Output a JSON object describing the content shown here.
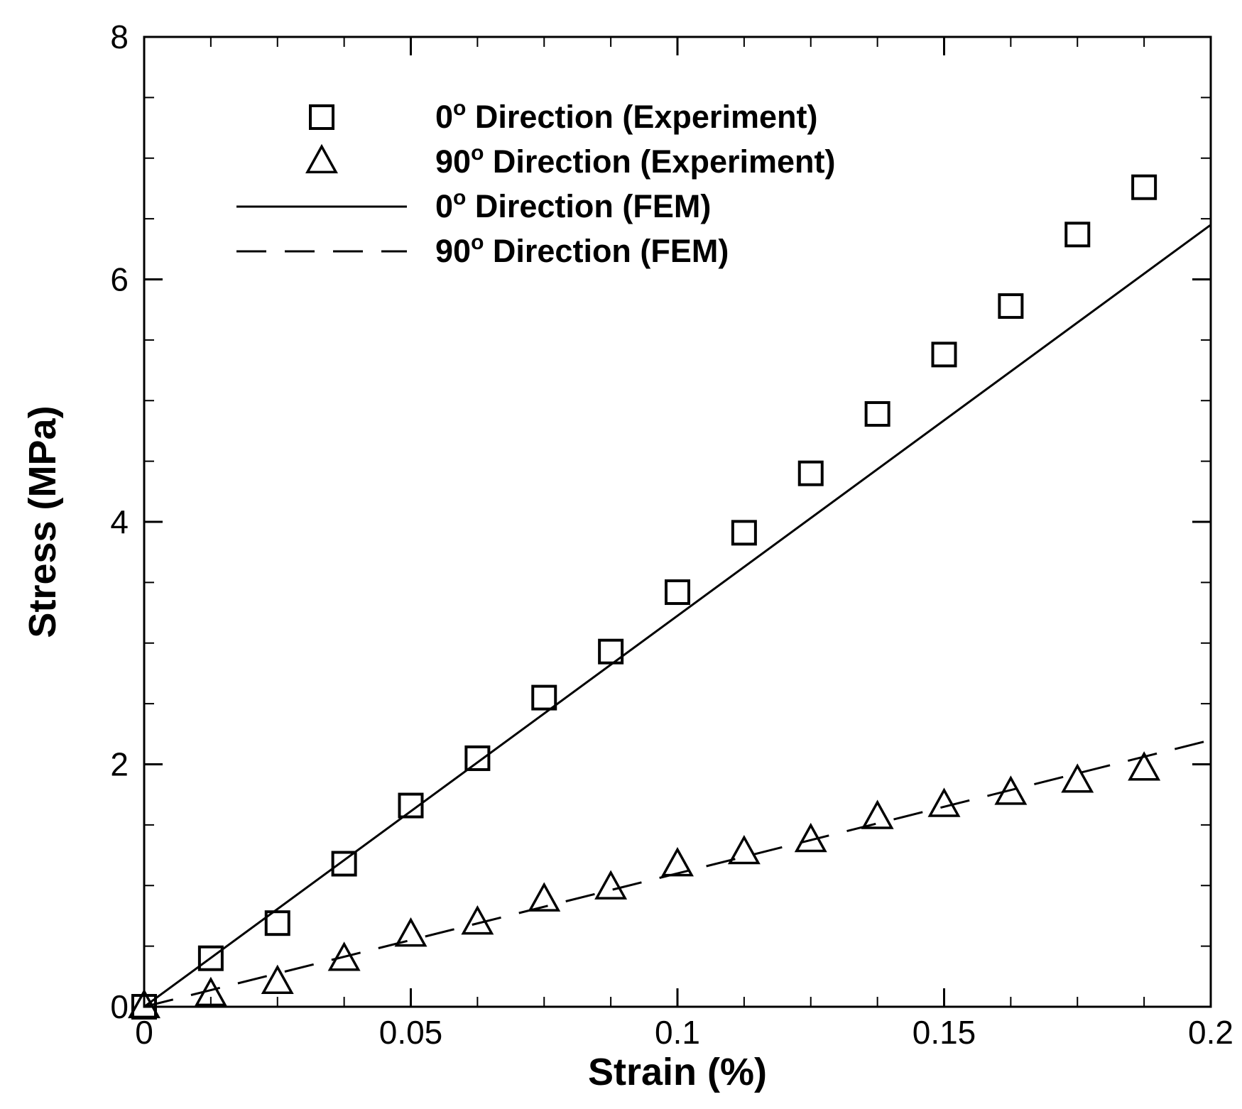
{
  "chart_data": {
    "type": "scatter",
    "title": "",
    "xlabel": "Strain (%)",
    "ylabel": "Stress (MPa)",
    "xlim": [
      0,
      0.2
    ],
    "ylim": [
      0,
      8
    ],
    "grid": false,
    "legend_position": "top-left",
    "x_ticks": [
      {
        "value": 0,
        "label": "0"
      },
      {
        "value": 0.05,
        "label": "0.05"
      },
      {
        "value": 0.1,
        "label": "0.1"
      },
      {
        "value": 0.15,
        "label": "0.15"
      },
      {
        "value": 0.2,
        "label": "0.2"
      }
    ],
    "y_ticks": [
      {
        "value": 0,
        "label": "0"
      },
      {
        "value": 2,
        "label": "2"
      },
      {
        "value": 4,
        "label": "4"
      },
      {
        "value": 6,
        "label": "6"
      },
      {
        "value": 8,
        "label": "8"
      }
    ],
    "series": [
      {
        "name": "0° Direction (Experiment)",
        "legend_main": "0",
        "legend_sup": "o",
        "legend_rest": " Direction (Experiment)",
        "style": "square-marker",
        "x": [
          0,
          0.0125,
          0.025,
          0.0375,
          0.05,
          0.0625,
          0.075,
          0.0875,
          0.1,
          0.1125,
          0.125,
          0.1375,
          0.15,
          0.1625,
          0.175,
          0.1875
        ],
        "y": [
          0,
          0.4,
          0.69,
          1.18,
          1.66,
          2.05,
          2.55,
          2.93,
          3.42,
          3.91,
          4.4,
          4.89,
          5.38,
          5.78,
          6.37,
          6.76
        ]
      },
      {
        "name": "90° Direction (Experiment)",
        "legend_main": "90",
        "legend_sup": "o",
        "legend_rest": " Direction (Experiment)",
        "style": "triangle-marker",
        "x": [
          0,
          0.0125,
          0.025,
          0.0375,
          0.05,
          0.0625,
          0.075,
          0.0875,
          0.1,
          0.1125,
          0.125,
          0.1375,
          0.15,
          0.1625,
          0.175,
          0.1875
        ],
        "y": [
          0,
          0.1,
          0.2,
          0.39,
          0.59,
          0.69,
          0.88,
          0.98,
          1.17,
          1.27,
          1.37,
          1.56,
          1.66,
          1.76,
          1.86,
          1.96
        ]
      },
      {
        "name": "0° Direction (FEM)",
        "legend_main": "0",
        "legend_sup": "o",
        "legend_rest": " Direction (FEM)",
        "style": "solid-line",
        "x": [
          0,
          0.2
        ],
        "y": [
          0,
          6.45
        ]
      },
      {
        "name": "90° Direction (FEM)",
        "legend_main": "90",
        "legend_sup": "o",
        "legend_rest": " Direction (FEM)",
        "style": "dashed-line",
        "x": [
          0,
          0.2
        ],
        "y": [
          0,
          2.2
        ]
      }
    ]
  },
  "colors": {
    "ink": "#000000",
    "background": "#ffffff"
  }
}
